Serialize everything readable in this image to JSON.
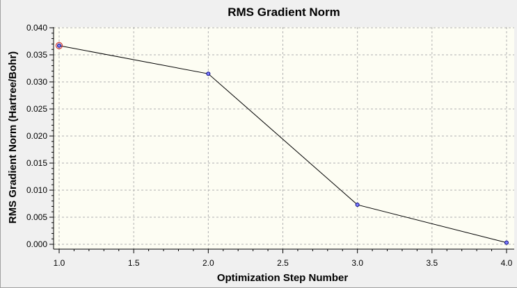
{
  "chart_data": {
    "type": "line",
    "title": "RMS Gradient Norm",
    "xlabel": "Optimization Step Number",
    "ylabel": "RMS Gradient Norm (Hartree/Bohr)",
    "xlim": [
      1.0,
      4.0
    ],
    "ylim": [
      0.0,
      0.04
    ],
    "x_ticks": [
      "1.0",
      "1.5",
      "2.0",
      "2.5",
      "3.0",
      "3.5",
      "4.0"
    ],
    "y_ticks": [
      "0.000",
      "0.005",
      "0.010",
      "0.015",
      "0.020",
      "0.025",
      "0.030",
      "0.035",
      "0.040"
    ],
    "grid": true,
    "series": [
      {
        "x": [
          1,
          2,
          3,
          4
        ],
        "y": [
          0.0367,
          0.0315,
          0.0073,
          0.0003
        ]
      }
    ],
    "highlighted_point": 0,
    "colors": {
      "plot_background": "#fdfdf3",
      "line": "#000000",
      "marker_fill": "#8080ff",
      "marker_stroke": "#000080",
      "highlight_ring": "#cc3333",
      "grid": "#b0b0b0"
    }
  }
}
